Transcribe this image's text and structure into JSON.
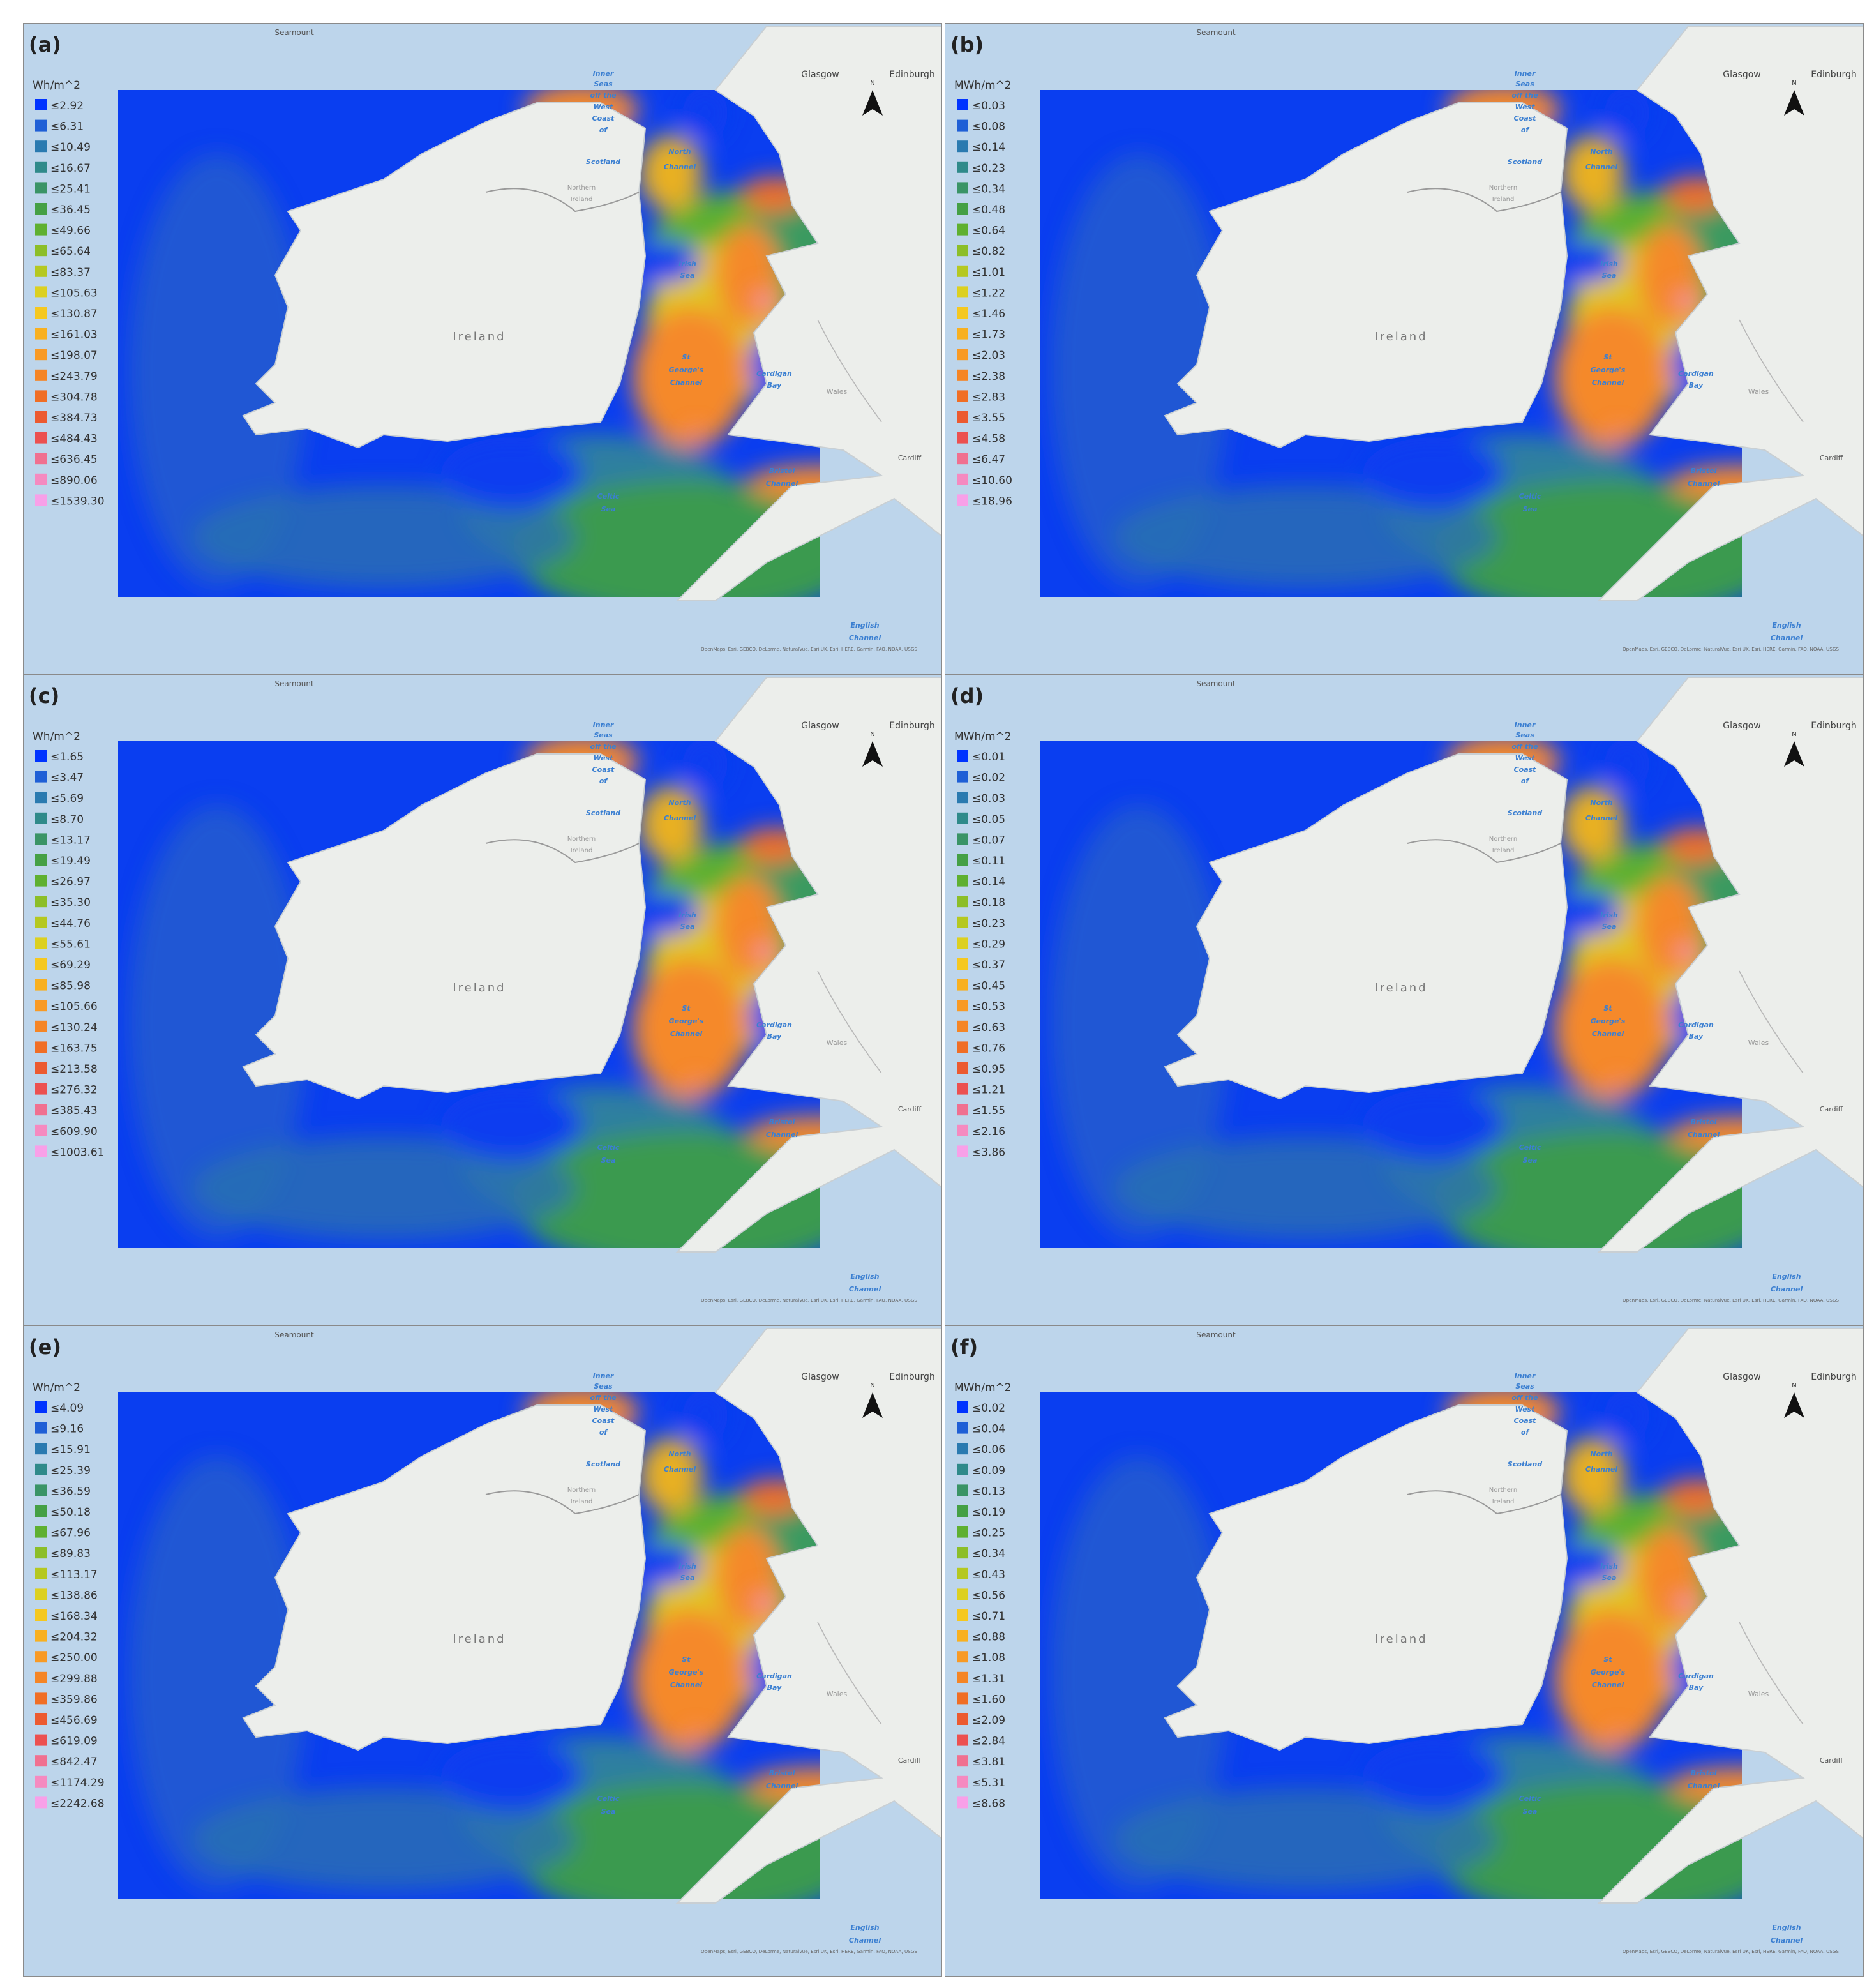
{
  "panels": [
    {
      "label": "(a)",
      "unit": "Wh/m^2",
      "legend": [
        "≤2.92",
        "≤6.31",
        "≤10.49",
        "≤16.67",
        "≤25.41",
        "≤36.45",
        "≤49.66",
        "≤65.64",
        "≤83.37",
        "≤105.63",
        "≤130.87",
        "≤161.03",
        "≤198.07",
        "≤243.79",
        "≤304.78",
        "≤384.73",
        "≤484.43",
        "≤636.45",
        "≤890.06",
        "≤1539.30"
      ]
    },
    {
      "label": "(b)",
      "unit": "MWh/m^2",
      "legend": [
        "≤0.03",
        "≤0.08",
        "≤0.14",
        "≤0.23",
        "≤0.34",
        "≤0.48",
        "≤0.64",
        "≤0.82",
        "≤1.01",
        "≤1.22",
        "≤1.46",
        "≤1.73",
        "≤2.03",
        "≤2.38",
        "≤2.83",
        "≤3.55",
        "≤4.58",
        "≤6.47",
        "≤10.60",
        "≤18.96"
      ]
    },
    {
      "label": "(c)",
      "unit": "Wh/m^2",
      "legend": [
        "≤1.65",
        "≤3.47",
        "≤5.69",
        "≤8.70",
        "≤13.17",
        "≤19.49",
        "≤26.97",
        "≤35.30",
        "≤44.76",
        "≤55.61",
        "≤69.29",
        "≤85.98",
        "≤105.66",
        "≤130.24",
        "≤163.75",
        "≤213.58",
        "≤276.32",
        "≤385.43",
        "≤609.90",
        "≤1003.61"
      ]
    },
    {
      "label": "(d)",
      "unit": "MWh/m^2",
      "legend": [
        "≤0.01",
        "≤0.02",
        "≤0.03",
        "≤0.05",
        "≤0.07",
        "≤0.11",
        "≤0.14",
        "≤0.18",
        "≤0.23",
        "≤0.29",
        "≤0.37",
        "≤0.45",
        "≤0.53",
        "≤0.63",
        "≤0.76",
        "≤0.95",
        "≤1.21",
        "≤1.55",
        "≤2.16",
        "≤3.86"
      ]
    },
    {
      "label": "(e)",
      "unit": "Wh/m^2",
      "legend": [
        "≤4.09",
        "≤9.16",
        "≤15.91",
        "≤25.39",
        "≤36.59",
        "≤50.18",
        "≤67.96",
        "≤89.83",
        "≤113.17",
        "≤138.86",
        "≤168.34",
        "≤204.32",
        "≤250.00",
        "≤299.88",
        "≤359.86",
        "≤456.69",
        "≤619.09",
        "≤842.47",
        "≤1174.29",
        "≤2242.68"
      ]
    },
    {
      "label": "(f)",
      "unit": "MWh/m^2",
      "legend": [
        "≤0.02",
        "≤0.04",
        "≤0.06",
        "≤0.09",
        "≤0.13",
        "≤0.19",
        "≤0.25",
        "≤0.34",
        "≤0.43",
        "≤0.56",
        "≤0.71",
        "≤0.88",
        "≤1.08",
        "≤1.31",
        "≤1.60",
        "≤2.09",
        "≤2.84",
        "≤3.81",
        "≤5.31",
        "≤8.68"
      ]
    }
  ],
  "legend_colors": [
    "#0033ff",
    "#1f5fd6",
    "#2a7ab0",
    "#2f8a8a",
    "#3a9466",
    "#45a045",
    "#5fb030",
    "#8cbe28",
    "#b5c820",
    "#dcd020",
    "#f5c820",
    "#f8b020",
    "#f89a25",
    "#f58525",
    "#f06e25",
    "#ec5a30",
    "#ec5050",
    "#f07090",
    "#f58ac0",
    "#f8a0e8"
  ],
  "place_labels": [
    "Seamount",
    "Glasgow",
    "Edinburgh",
    "Inner",
    "Seas",
    "off the",
    "West",
    "Coast",
    "of",
    "Scotland",
    "North",
    "Channel",
    "Northern",
    "Ireland",
    "Irish",
    "Sea",
    "Ireland",
    "St",
    "George's",
    "Channel",
    "Cardigan",
    "Bay",
    "Wales",
    "Celtic",
    "Sea",
    "Bristol",
    "Channel",
    "Cardiff",
    "English",
    "Channel"
  ],
  "north": "N",
  "attribution": "OpenMaps, Esri, GEBCO, DeLorme, NaturalVue, Esri UK, Esri, HERE, Garmin, FAO, NOAA, USGS"
}
